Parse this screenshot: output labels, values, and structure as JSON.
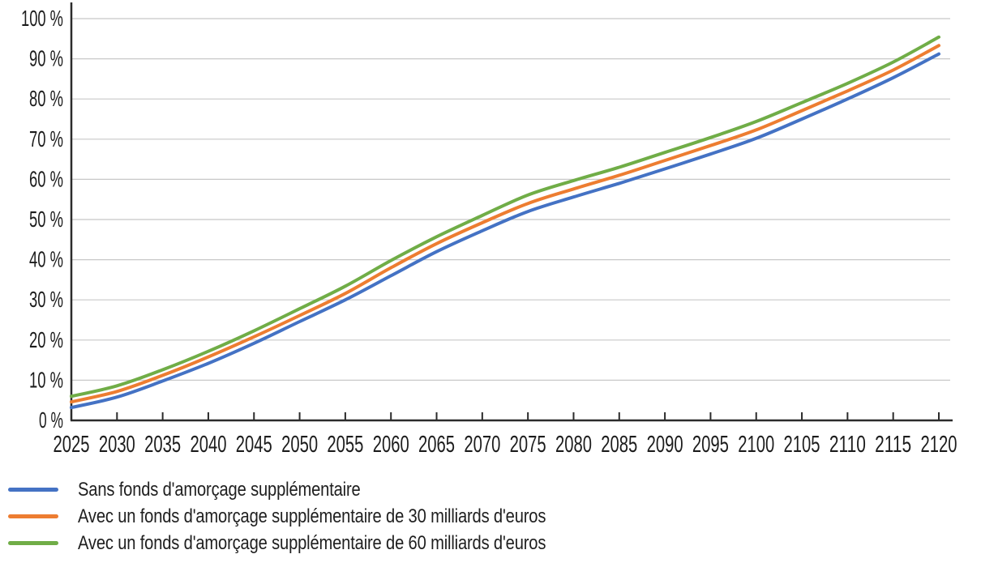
{
  "chart_data": {
    "type": "line",
    "title": "",
    "xlabel": "",
    "ylabel": "",
    "x_labels": [
      "2025",
      "2030",
      "2035",
      "2040",
      "2045",
      "2050",
      "2055",
      "2060",
      "2065",
      "2070",
      "2075",
      "2080",
      "2085",
      "2090",
      "2095",
      "2100",
      "2105",
      "2110",
      "2115",
      "2120"
    ],
    "y_tick_labels": [
      "0 %",
      "10 %",
      "20 %",
      "30 %",
      "40 %",
      "50 %",
      "60 %",
      "70 %",
      "80 %",
      "90 %",
      "100 %"
    ],
    "ylim": [
      0,
      100
    ],
    "ytick_step": 10,
    "grid": true,
    "legend_position": "bottom-left",
    "series": [
      {
        "name": "Sans fonds d'amorçage supplémentaire",
        "color": "#4472C4",
        "values": [
          3.2,
          5.8,
          9.8,
          14.2,
          19.2,
          24.6,
          30.0,
          36.0,
          42.0,
          47.2,
          52.0,
          55.6,
          59.0,
          62.6,
          66.3,
          70.2,
          75.0,
          80.0,
          85.3,
          91.2
        ]
      },
      {
        "name": "Avec un fonds d'amorçage supplémentaire de 30 milliards d'euros",
        "color": "#ED7D31",
        "values": [
          4.6,
          7.2,
          11.2,
          15.8,
          20.8,
          26.1,
          31.6,
          38.0,
          44.0,
          49.2,
          54.0,
          57.6,
          61.0,
          64.7,
          68.4,
          72.3,
          77.1,
          82.0,
          87.2,
          93.3
        ]
      },
      {
        "name": "Avec un fonds d'amorçage supplémentaire de 60 milliards d'euros",
        "color": "#70AD47",
        "values": [
          6.0,
          8.6,
          12.6,
          17.2,
          22.3,
          27.8,
          33.4,
          39.8,
          45.7,
          51.0,
          56.1,
          59.7,
          63.0,
          66.7,
          70.4,
          74.4,
          79.1,
          83.9,
          89.2,
          95.4
        ]
      }
    ],
    "colors": {
      "axis": "#2b2b2b",
      "gridline": "#c8c8c8",
      "tick_text": "#1c1c1c"
    }
  }
}
